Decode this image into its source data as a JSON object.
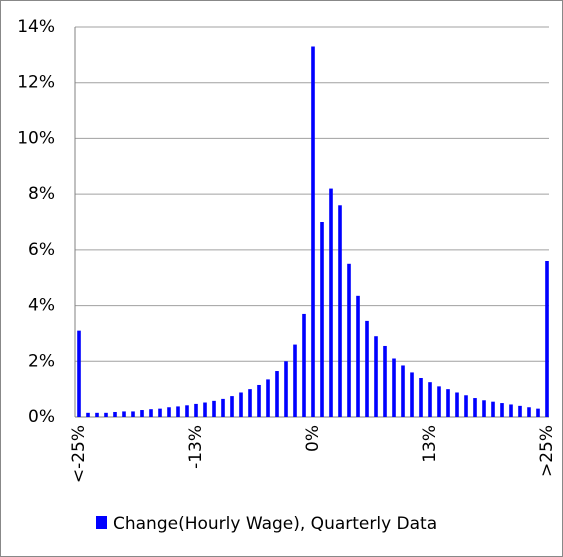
{
  "chart_data": {
    "type": "bar",
    "color": "#0000ff",
    "legend": "Change(Hourly Wage), Quarterly Data",
    "categories": [
      "<-25%",
      null,
      null,
      null,
      null,
      null,
      null,
      null,
      null,
      null,
      null,
      null,
      null,
      "-13%",
      null,
      null,
      null,
      null,
      null,
      null,
      null,
      null,
      null,
      null,
      null,
      null,
      "0%",
      null,
      null,
      null,
      null,
      null,
      null,
      null,
      null,
      null,
      null,
      null,
      null,
      "13%",
      null,
      null,
      null,
      null,
      null,
      null,
      null,
      null,
      null,
      null,
      null,
      null,
      ">25%"
    ],
    "values": [
      3.1,
      0.15,
      0.15,
      0.15,
      0.18,
      0.2,
      0.2,
      0.25,
      0.28,
      0.3,
      0.35,
      0.38,
      0.42,
      0.47,
      0.52,
      0.58,
      0.65,
      0.75,
      0.88,
      1.0,
      1.15,
      1.35,
      1.65,
      2.0,
      2.6,
      3.7,
      13.3,
      7.0,
      8.2,
      7.6,
      5.5,
      4.35,
      3.45,
      2.9,
      2.55,
      2.1,
      1.85,
      1.6,
      1.4,
      1.25,
      1.1,
      1.0,
      0.88,
      0.78,
      0.68,
      0.6,
      0.55,
      0.5,
      0.45,
      0.4,
      0.35,
      0.3,
      5.6
    ],
    "ylim": [
      0,
      14
    ],
    "yticks": [
      {
        "value": 0,
        "label": "0%"
      },
      {
        "value": 2,
        "label": "2%"
      },
      {
        "value": 4,
        "label": "4%"
      },
      {
        "value": 6,
        "label": "6%"
      },
      {
        "value": 8,
        "label": "8%"
      },
      {
        "value": 10,
        "label": "10%"
      },
      {
        "value": 12,
        "label": "12%"
      },
      {
        "value": 14,
        "label": "14%"
      }
    ],
    "grid": true
  }
}
